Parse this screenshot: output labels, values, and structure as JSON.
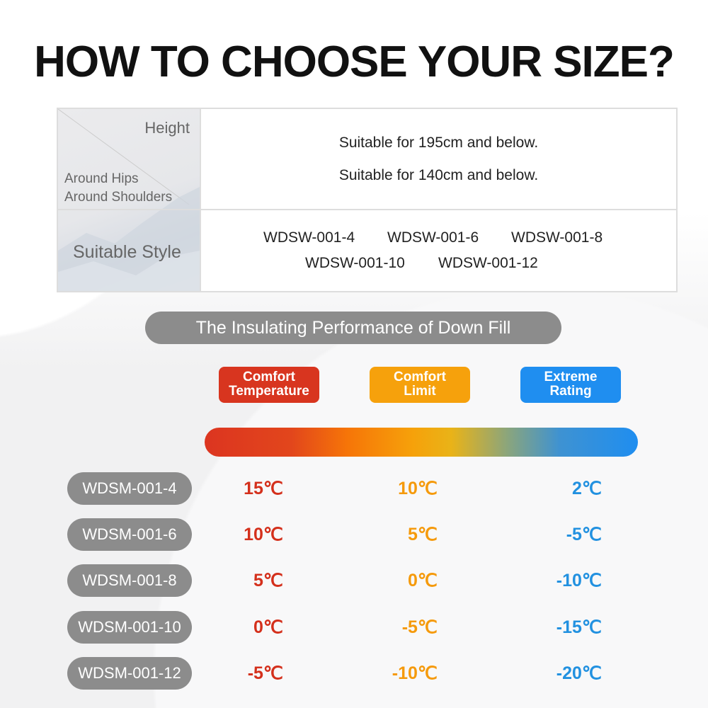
{
  "title": "HOW TO CHOOSE YOUR SIZE?",
  "size_table": {
    "header_height": "Height",
    "header_hips": "Around Hips",
    "header_shoulders": "Around Shoulders",
    "height_text": "Suitable for 195cm and below.",
    "hips_text": "Suitable for 140cm and below.",
    "style_label": "Suitable Style",
    "styles": [
      "WDSW-001-4",
      "WDSW-001-6",
      "WDSW-001-8",
      "WDSW-001-10",
      "WDSW-001-12"
    ]
  },
  "section_title": "The Insulating Performance of Down Fill",
  "legend": [
    {
      "line1": "Comfort",
      "line2": "Temperature",
      "color": "#d8351f"
    },
    {
      "line1": "Comfort",
      "line2": "Limit",
      "color": "#f6a10c"
    },
    {
      "line1": "Extreme",
      "line2": "Rating",
      "color": "#1f8ef0"
    }
  ],
  "rows": [
    {
      "model": "WDSM-001-4",
      "values": [
        "15℃",
        "10℃",
        "2℃"
      ]
    },
    {
      "model": "WDSM-001-6",
      "values": [
        "10℃",
        "5℃",
        "-5℃"
      ]
    },
    {
      "model": "WDSM-001-8",
      "values": [
        "5℃",
        "0℃",
        "-10℃"
      ]
    },
    {
      "model": "WDSM-001-10",
      "values": [
        "0℃",
        "-5℃",
        "-15℃"
      ]
    },
    {
      "model": "WDSM-001-12",
      "values": [
        "-5℃",
        "-10℃",
        "-20℃"
      ]
    }
  ]
}
